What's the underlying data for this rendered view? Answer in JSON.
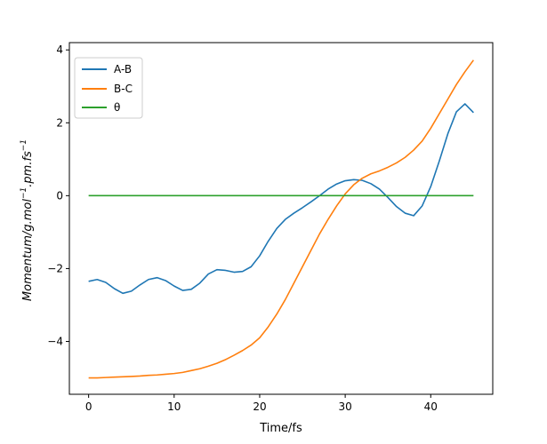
{
  "chart_data": {
    "type": "line",
    "title": "",
    "xlabel": "Time/fs",
    "ylabel": "Momentum/g.mol",
    "ylabel_unit_parts": [
      "Momentum/g.mol",
      "−1",
      ".pm.fs",
      "−1"
    ],
    "xlim": [
      -2.25,
      47.25
    ],
    "ylim": [
      -5.45,
      4.2
    ],
    "xticks": [
      0,
      10,
      20,
      30,
      40
    ],
    "yticks": [
      -4,
      -2,
      0,
      2,
      4
    ],
    "xtick_labels": [
      "0",
      "10",
      "20",
      "30",
      "40"
    ],
    "ytick_labels": [
      "−4",
      "−2",
      "0",
      "2",
      "4"
    ],
    "legend_position": "upper-left",
    "series": [
      {
        "name": "A-B",
        "color": "#1f77b4",
        "x": [
          0,
          1,
          2,
          3,
          4,
          5,
          6,
          7,
          8,
          9,
          10,
          11,
          12,
          13,
          14,
          15,
          16,
          17,
          18,
          19,
          20,
          21,
          22,
          23,
          24,
          25,
          26,
          27,
          28,
          29,
          30,
          31,
          32,
          33,
          34,
          35,
          36,
          37,
          38,
          39,
          40,
          41,
          42,
          43,
          44,
          45
        ],
        "y": [
          -2.35,
          -2.3,
          -2.38,
          -2.55,
          -2.68,
          -2.62,
          -2.45,
          -2.3,
          -2.25,
          -2.33,
          -2.48,
          -2.6,
          -2.57,
          -2.4,
          -2.15,
          -2.03,
          -2.05,
          -2.1,
          -2.08,
          -1.95,
          -1.65,
          -1.25,
          -0.9,
          -0.65,
          -0.48,
          -0.33,
          -0.17,
          0.0,
          0.18,
          0.32,
          0.41,
          0.44,
          0.42,
          0.33,
          0.18,
          -0.05,
          -0.3,
          -0.48,
          -0.55,
          -0.28,
          0.25,
          0.95,
          1.7,
          2.3,
          2.52,
          2.28
        ]
      },
      {
        "name": "B-C",
        "color": "#ff7f0e",
        "x": [
          0,
          1,
          2,
          3,
          4,
          5,
          6,
          7,
          8,
          9,
          10,
          11,
          12,
          13,
          14,
          15,
          16,
          17,
          18,
          19,
          20,
          21,
          22,
          23,
          24,
          25,
          26,
          27,
          28,
          29,
          30,
          31,
          32,
          33,
          34,
          35,
          36,
          37,
          38,
          39,
          40,
          41,
          42,
          43,
          44,
          45
        ],
        "y": [
          -5.0,
          -5.0,
          -4.99,
          -4.98,
          -4.97,
          -4.96,
          -4.95,
          -4.93,
          -4.92,
          -4.9,
          -4.88,
          -4.85,
          -4.8,
          -4.75,
          -4.68,
          -4.6,
          -4.5,
          -4.38,
          -4.25,
          -4.1,
          -3.9,
          -3.6,
          -3.25,
          -2.85,
          -2.4,
          -1.95,
          -1.5,
          -1.05,
          -0.65,
          -0.28,
          0.05,
          0.3,
          0.48,
          0.6,
          0.68,
          0.78,
          0.9,
          1.05,
          1.25,
          1.5,
          1.85,
          2.25,
          2.65,
          3.05,
          3.4,
          3.72
        ]
      },
      {
        "name": "θ",
        "color": "#2ca02c",
        "x": [
          0,
          45
        ],
        "y": [
          0,
          0
        ]
      }
    ]
  }
}
